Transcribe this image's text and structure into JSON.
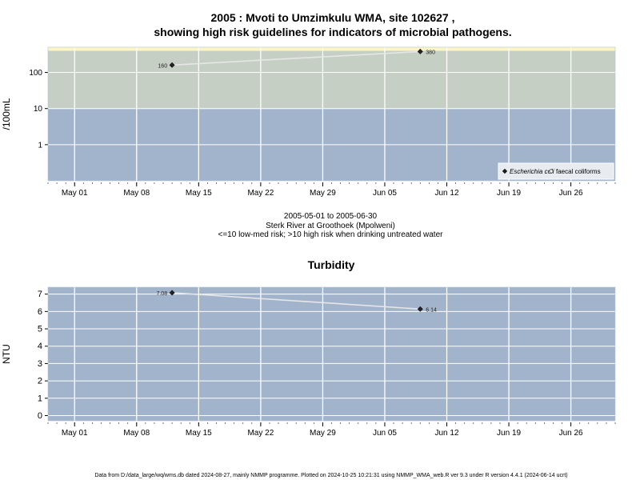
{
  "page": {
    "title_line1": "2005 : Mvoti to Umzimkulu WMA, site 102627 ,",
    "title_line2": "showing high risk guidelines for indicators of microbial pathogens.",
    "caption_line1": "2005-05-01 to 2005-06-30",
    "caption_line2": "Sterk River at Groothoek (Mpolweni)",
    "caption_line3": "<=10 low-med risk; >10 high risk when drinking untreated water",
    "footer": "Data from D:/data_large/wq/wms.db dated 2024-08-27, mainly NMMP programme. Plotted on 2024-10-25 10:21:31 using NMMP_WMA_web.R ver 9.3 under R version 4.4.1 (2024-06-14 ucrt)"
  },
  "colors": {
    "low_risk_band": "#a2b4cc",
    "high_risk_band": "#c5cfc4",
    "very_high_band": "#fdf5c6",
    "grid": "#ffffff",
    "series_line": "#e6e6e6",
    "marker": "#222222"
  },
  "chart_data": [
    {
      "type": "line",
      "title": "",
      "ylabel": "/100mL",
      "yscale": "log",
      "ylim": [
        0.1,
        500
      ],
      "y_ticks": [
        1,
        10,
        100
      ],
      "y_tick_labels": [
        "1",
        "10",
        "100"
      ],
      "xlim": [
        "2005-04-28",
        "2005-07-01"
      ],
      "x_ticks": [
        "2005-05-01",
        "2005-05-08",
        "2005-05-15",
        "2005-05-22",
        "2005-05-29",
        "2005-06-05",
        "2005-06-12",
        "2005-06-19",
        "2005-06-26"
      ],
      "x_tick_labels": [
        "May 01",
        "May 08",
        "May 15",
        "May 22",
        "May 29",
        "Jun 05",
        "Jun 12",
        "Jun 19",
        "Jun 26"
      ],
      "grid": true,
      "bands": [
        {
          "from": 0.1,
          "to": 10,
          "risk": "low-med"
        },
        {
          "from": 10,
          "to": 400,
          "risk": "high"
        },
        {
          "from": 400,
          "to": 500,
          "risk": "very high"
        }
      ],
      "legend_position": "bottom-right",
      "legend": [
        {
          "label": "Escherichia coli",
          "marker": "filled-diamond",
          "italic": true
        },
        {
          "label": "faecal coliforms",
          "marker": "open-diamond",
          "italic": false
        }
      ],
      "series": [
        {
          "name": "Escherichia coli",
          "x": [
            "2005-05-12",
            "2005-06-09"
          ],
          "y": [
            160,
            380
          ],
          "labels": [
            "160",
            "380"
          ]
        }
      ]
    },
    {
      "type": "line",
      "title": "Turbidity",
      "ylabel": "NTU",
      "yscale": "linear",
      "ylim": [
        -0.3,
        7.4
      ],
      "y_ticks": [
        0,
        1,
        2,
        3,
        4,
        5,
        6,
        7
      ],
      "y_tick_labels": [
        "0",
        "1",
        "2",
        "3",
        "4",
        "5",
        "6",
        "7"
      ],
      "xlim": [
        "2005-04-28",
        "2005-07-01"
      ],
      "x_ticks": [
        "2005-05-01",
        "2005-05-08",
        "2005-05-15",
        "2005-05-22",
        "2005-05-29",
        "2005-06-05",
        "2005-06-12",
        "2005-06-19",
        "2005-06-26"
      ],
      "x_tick_labels": [
        "May 01",
        "May 08",
        "May 15",
        "May 22",
        "May 29",
        "Jun 05",
        "Jun 12",
        "Jun 19",
        "Jun 26"
      ],
      "grid": true,
      "series": [
        {
          "name": "Turbidity",
          "x": [
            "2005-05-12",
            "2005-06-09"
          ],
          "y": [
            7.08,
            6.14
          ],
          "labels": [
            "7.08",
            "6.14"
          ]
        }
      ]
    }
  ]
}
